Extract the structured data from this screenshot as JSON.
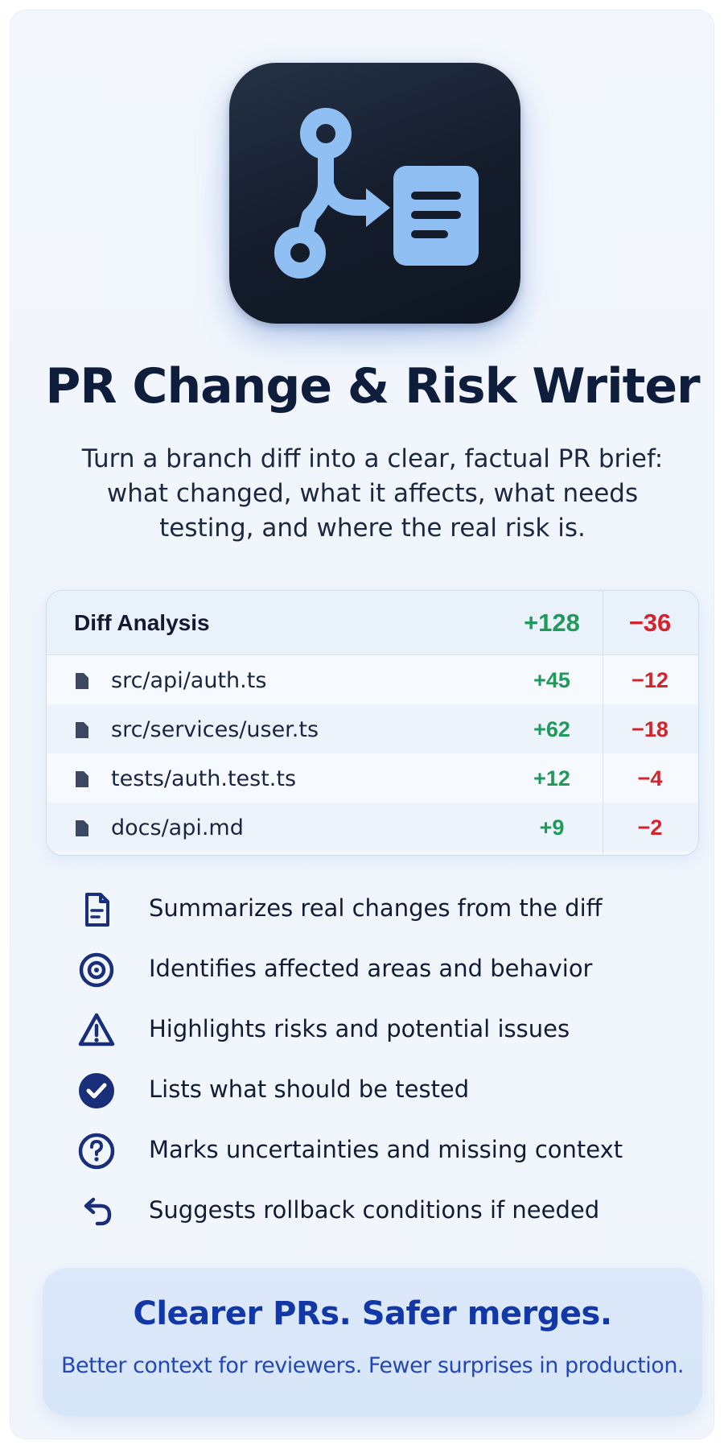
{
  "app": {
    "icon": "branch-to-document-icon",
    "title": "PR Change & Risk Writer",
    "subtitle": "Turn a branch diff into a clear, factual PR brief: what changed, what it affects, what needs testing, and where the real risk is."
  },
  "diff": {
    "title": "Diff Analysis",
    "total_added": "+128",
    "total_removed": "−36",
    "files": [
      {
        "name": "src/api/auth.ts",
        "added": "+45",
        "removed": "−12"
      },
      {
        "name": "src/services/user.ts",
        "added": "+62",
        "removed": "−18"
      },
      {
        "name": "tests/auth.test.ts",
        "added": "+12",
        "removed": "−4"
      },
      {
        "name": "docs/api.md",
        "added": "+9",
        "removed": "−2"
      }
    ]
  },
  "features": [
    {
      "icon": "document-icon",
      "label": "Summarizes real changes from the diff"
    },
    {
      "icon": "target-icon",
      "label": "Identifies affected areas and behavior"
    },
    {
      "icon": "warning-icon",
      "label": "Highlights risks and potential issues"
    },
    {
      "icon": "check-circle-icon",
      "label": "Lists what should be tested"
    },
    {
      "icon": "question-circle-icon",
      "label": "Marks uncertainties and missing context"
    },
    {
      "icon": "undo-arrow-icon",
      "label": "Suggests rollback conditions if needed"
    }
  ],
  "banner": {
    "title": "Clearer PRs. Safer merges.",
    "subtitle": "Better context for reviewers. Fewer surprises in production."
  },
  "colors": {
    "navy": "#0f1d3d",
    "icon_blue": "#1a2f7a",
    "added_green": "#1f9a5a",
    "removed_red": "#d4232c",
    "banner_blue": "#1238a8",
    "app_icon_bg": "#141c2b",
    "app_icon_glyph": "#8fbff3"
  }
}
